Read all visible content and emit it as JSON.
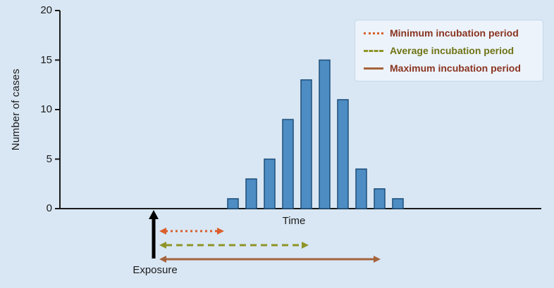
{
  "page": {
    "background_color": "#d9e7f4"
  },
  "chart_data": {
    "type": "bar",
    "title": "",
    "ylabel": "Number of cases",
    "xlabel": "Time",
    "ylim": [
      0,
      20
    ],
    "yticks": [
      0,
      5,
      10,
      15,
      20
    ],
    "values": [
      1,
      3,
      5,
      9,
      13,
      15,
      11,
      4,
      2,
      1
    ],
    "bar_fill": "#4d8dc3",
    "bar_stroke": "#1e4e79",
    "axis_color": "#1a1a1a",
    "grid": false,
    "legend_position": "top-right"
  },
  "legend": {
    "items": [
      {
        "label": "Minimum incubation period",
        "line_style": "dotted",
        "line_color": "#d95f2b",
        "text_color": "#8a3420"
      },
      {
        "label": "Average incubation period",
        "line_style": "dashed",
        "line_color": "#8f9426",
        "text_color": "#6f7313"
      },
      {
        "label": "Maximum incubation period",
        "line_style": "solid",
        "line_color": "#a5633c",
        "text_color": "#8a3420"
      }
    ]
  },
  "annotations": {
    "exposure_label": "Exposure",
    "time_label": "Time",
    "exposure_marker_color": "#000000",
    "arrows": [
      {
        "name": "minimum-incubation-arrow",
        "style": "dotted",
        "color": "#d95f2b",
        "relative_length": "short"
      },
      {
        "name": "average-incubation-arrow",
        "style": "dashed",
        "color": "#8f9426",
        "relative_length": "medium"
      },
      {
        "name": "maximum-incubation-arrow",
        "style": "solid",
        "color": "#a5633c",
        "relative_length": "long"
      }
    ]
  }
}
